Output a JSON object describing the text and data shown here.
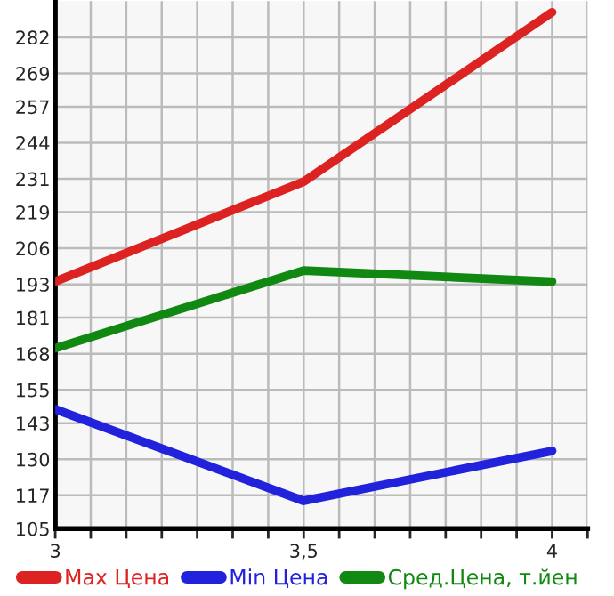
{
  "chart_data": {
    "type": "line",
    "x": [
      3,
      3.5,
      4
    ],
    "series": [
      {
        "name": "Max Цена",
        "color": "#dd2222",
        "values": [
          194,
          230,
          291
        ]
      },
      {
        "name": "Min Цена",
        "color": "#2222dd",
        "values": [
          148,
          115,
          133
        ]
      },
      {
        "name": "Сред.Цена, т.йен",
        "color": "#118811",
        "values": [
          170,
          198,
          194
        ]
      }
    ],
    "xlim": [
      3,
      4.0714
    ],
    "xticks": [
      3,
      {
        "value": 3.0714,
        "label": null
      },
      {
        "value": 3.1429,
        "label": null
      },
      {
        "value": 3.2143,
        "label": null
      },
      {
        "value": 3.2857,
        "label": null
      },
      {
        "value": 3.3571,
        "label": null
      },
      {
        "value": 3.4286,
        "label": null
      },
      {
        "value": 3.5,
        "label": "3,5"
      },
      {
        "value": 3.5714,
        "label": null
      },
      {
        "value": 3.6429,
        "label": null
      },
      {
        "value": 3.7143,
        "label": null
      },
      {
        "value": 3.7857,
        "label": null
      },
      {
        "value": 3.8571,
        "label": null
      },
      {
        "value": 3.9286,
        "label": null
      },
      4,
      {
        "value": 4.0714,
        "label": null
      }
    ],
    "ylim": [
      105,
      295
    ],
    "yticks": [
      105,
      117,
      130,
      143,
      155,
      168,
      181,
      193,
      206,
      219,
      231,
      244,
      257,
      269,
      282
    ],
    "grid": true,
    "legend": "bottom",
    "marker": "none",
    "line_style": "solid"
  }
}
